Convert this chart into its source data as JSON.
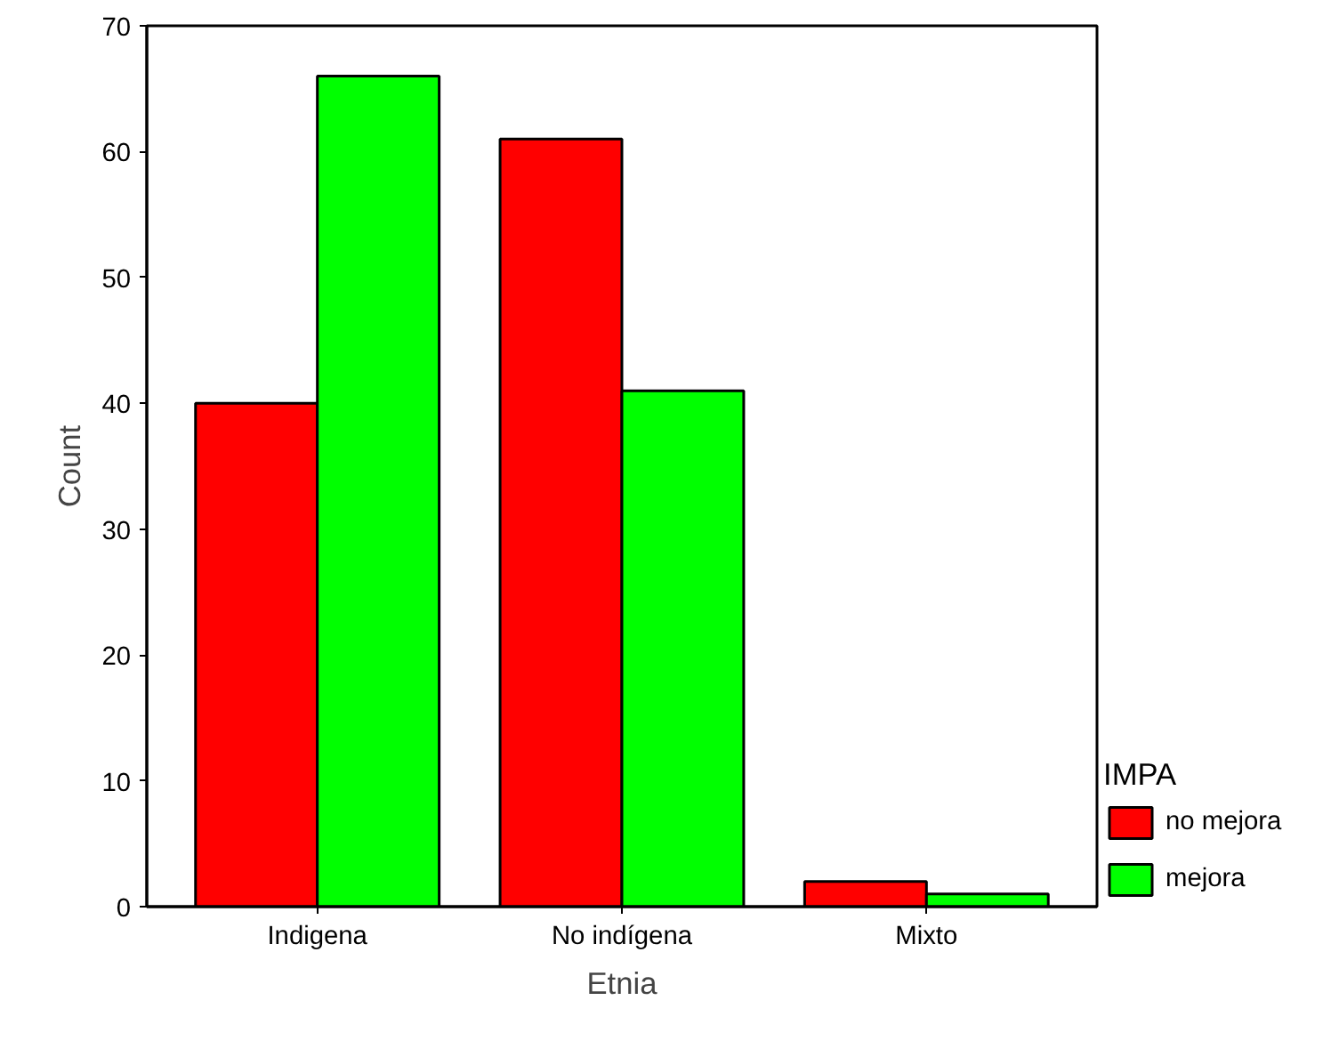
{
  "chart_data": {
    "type": "bar",
    "xlabel": "Etnia",
    "ylabel": "Count",
    "legend_title": "IMPA",
    "categories": [
      "Indigena",
      "No indígena",
      "Mixto"
    ],
    "series": [
      {
        "name": "no mejora",
        "color": "#ff0000",
        "values": [
          40,
          61,
          2
        ]
      },
      {
        "name": "mejora",
        "color": "#00ff00",
        "values": [
          66,
          41,
          1
        ]
      }
    ],
    "ylim": [
      0,
      70
    ],
    "yticks": [
      0,
      10,
      20,
      30,
      40,
      50,
      60,
      70
    ],
    "grid": false,
    "legend": "right"
  }
}
